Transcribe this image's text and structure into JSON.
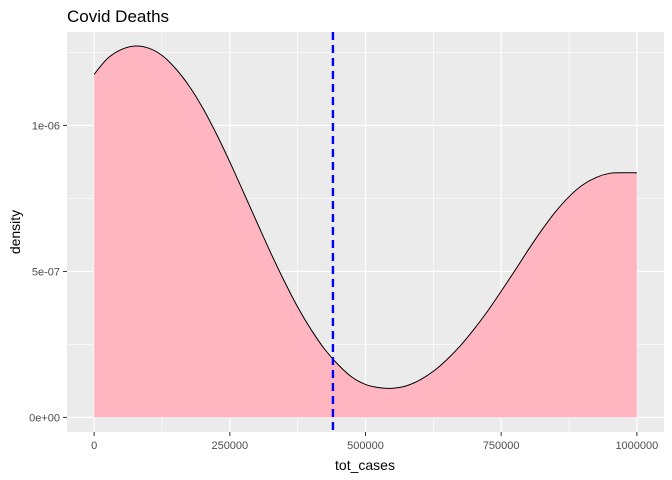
{
  "chart_data": {
    "type": "area",
    "title": "Covid Deaths",
    "xlabel": "tot_cases",
    "ylabel": "density",
    "xlim": [
      -50000,
      1050000
    ],
    "ylim": [
      -5e-08,
      1.32e-06
    ],
    "x_ticks": [
      {
        "value": 0,
        "label": "0"
      },
      {
        "value": 250000,
        "label": "250000"
      },
      {
        "value": 500000,
        "label": "500000"
      },
      {
        "value": 750000,
        "label": "750000"
      },
      {
        "value": 1000000,
        "label": "1000000"
      }
    ],
    "y_ticks": [
      {
        "value": 0,
        "label": "0e+00"
      },
      {
        "value": 5e-07,
        "label": "5e-07"
      },
      {
        "value": 1e-06,
        "label": "1e-06"
      }
    ],
    "grid": true,
    "legend": "none",
    "fill_color": "#ffb6c1",
    "line_color": "#000000",
    "panel_color": "#ebebeb",
    "series": [
      {
        "x": [
          0,
          25000,
          50000,
          75000,
          100000,
          125000,
          150000,
          175000,
          200000,
          225000,
          250000,
          275000,
          300000,
          325000,
          350000,
          375000,
          400000,
          425000,
          450000,
          475000,
          500000,
          525000,
          550000,
          575000,
          600000,
          625000,
          650000,
          675000,
          700000,
          725000,
          750000,
          775000,
          800000,
          825000,
          850000,
          875000,
          900000,
          925000,
          950000,
          975000,
          1000000
        ],
        "y": [
          1.175e-06,
          1.23e-06,
          1.26e-06,
          1.272e-06,
          1.265e-06,
          1.24e-06,
          1.195e-06,
          1.135e-06,
          1.06e-06,
          9.72e-07,
          8.75e-07,
          7.72e-07,
          6.68e-07,
          5.65e-07,
          4.68e-07,
          3.78e-07,
          3e-07,
          2.33e-07,
          1.8e-07,
          1.38e-07,
          1.13e-07,
          1.02e-07,
          1e-07,
          1.08e-07,
          1.28e-07,
          1.58e-07,
          1.98e-07,
          2.46e-07,
          3.02e-07,
          3.64e-07,
          4.32e-07,
          5.02e-07,
          5.74e-07,
          6.42e-07,
          7.04e-07,
          7.56e-07,
          7.96e-07,
          8.22e-07,
          8.36e-07,
          8.38e-07,
          8.38e-07
        ]
      }
    ],
    "vline": {
      "x": 440000,
      "color": "#0000ff",
      "style": "dashed"
    }
  }
}
